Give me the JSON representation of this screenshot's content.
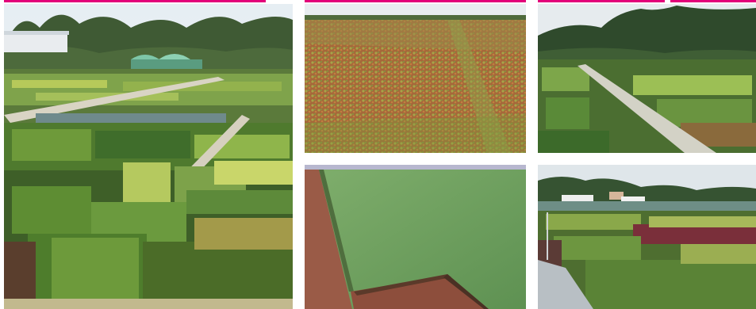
{
  "gallery": {
    "accent_color": "#e3007a",
    "photos": [
      {
        "scene": "plant-nursery-field"
      },
      {
        "scene": "sedum-mat-field"
      },
      {
        "scene": "nursery-path-hills"
      },
      {
        "scene": "turf-roll-field"
      },
      {
        "scene": "nursery-beds-greenhouses"
      }
    ]
  }
}
